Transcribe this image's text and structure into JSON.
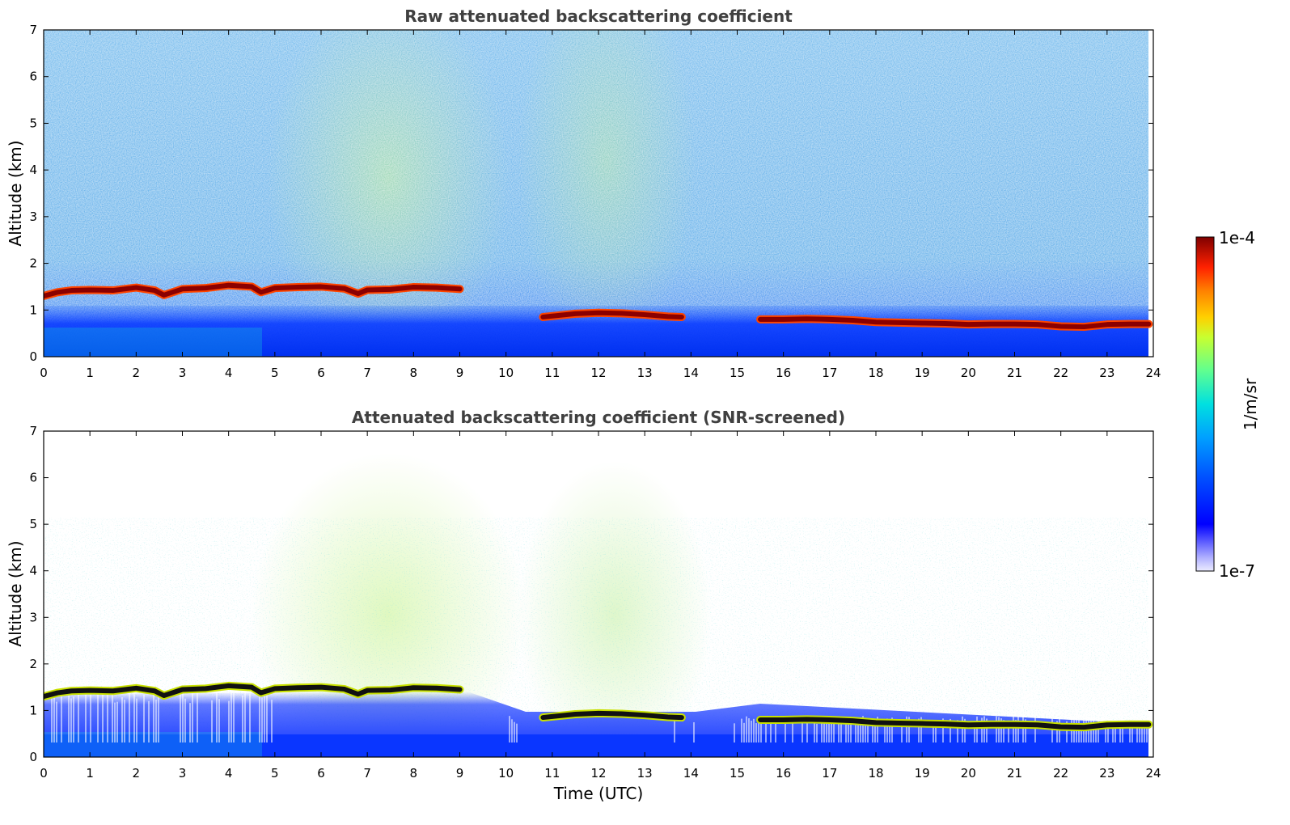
{
  "chart_data": [
    {
      "type": "heatmap",
      "title": "Raw attenuated backscattering coefficient",
      "xlabel": "",
      "ylabel": "Altitude (km)",
      "xlim": [
        0,
        24
      ],
      "ylim": [
        0,
        7
      ],
      "xticks": [
        0,
        1,
        2,
        3,
        4,
        5,
        6,
        7,
        8,
        9,
        10,
        11,
        12,
        13,
        14,
        15,
        16,
        17,
        18,
        19,
        20,
        21,
        22,
        23,
        24
      ],
      "yticks": [
        0,
        1,
        2,
        3,
        4,
        5,
        6,
        7
      ],
      "cloud_layers": [
        {
          "x": [
            0.0,
            0.3,
            0.6,
            1.0,
            1.5,
            2.0,
            2.4,
            2.6,
            3.0,
            3.5,
            4.0,
            4.5,
            4.7,
            5.0,
            5.5,
            6.0,
            6.5,
            6.8,
            7.0,
            7.5,
            8.0,
            8.5,
            9.0
          ],
          "y": [
            1.3,
            1.38,
            1.42,
            1.43,
            1.42,
            1.48,
            1.42,
            1.32,
            1.45,
            1.47,
            1.53,
            1.5,
            1.38,
            1.47,
            1.49,
            1.5,
            1.46,
            1.35,
            1.43,
            1.44,
            1.49,
            1.48,
            1.45
          ]
        },
        {
          "x": [
            10.8,
            11.0,
            11.5,
            12.0,
            12.5,
            13.0,
            13.5,
            13.8
          ],
          "y": [
            0.85,
            0.87,
            0.92,
            0.94,
            0.93,
            0.9,
            0.86,
            0.85
          ]
        },
        {
          "x": [
            15.5,
            16.0,
            16.5,
            17.0,
            17.5,
            18.0,
            18.5,
            19.0,
            19.5,
            20.0,
            20.5,
            21.0,
            21.5,
            22.0,
            22.5,
            23.0,
            23.5,
            23.9
          ],
          "y": [
            0.8,
            0.8,
            0.81,
            0.8,
            0.78,
            0.74,
            0.73,
            0.72,
            0.71,
            0.69,
            0.7,
            0.7,
            0.69,
            0.65,
            0.64,
            0.69,
            0.7,
            0.7
          ]
        }
      ]
    },
    {
      "type": "heatmap",
      "title": "Attenuated backscattering coefficient (SNR-screened)",
      "xlabel": "Time (UTC)",
      "ylabel": "Altitude (km)",
      "xlim": [
        0,
        24
      ],
      "ylim": [
        0,
        7
      ],
      "xticks": [
        0,
        1,
        2,
        3,
        4,
        5,
        6,
        7,
        8,
        9,
        10,
        11,
        12,
        13,
        14,
        15,
        16,
        17,
        18,
        19,
        20,
        21,
        22,
        23,
        24
      ],
      "yticks": [
        0,
        1,
        2,
        3,
        4,
        5,
        6,
        7
      ],
      "cloud_layers": [
        {
          "x": [
            0.0,
            0.3,
            0.6,
            1.0,
            1.5,
            2.0,
            2.4,
            2.6,
            3.0,
            3.5,
            4.0,
            4.5,
            4.7,
            5.0,
            5.5,
            6.0,
            6.5,
            6.8,
            7.0,
            7.5,
            8.0,
            8.5,
            9.0
          ],
          "y": [
            1.3,
            1.38,
            1.42,
            1.43,
            1.42,
            1.48,
            1.42,
            1.32,
            1.45,
            1.47,
            1.53,
            1.5,
            1.38,
            1.47,
            1.49,
            1.5,
            1.46,
            1.35,
            1.43,
            1.44,
            1.49,
            1.48,
            1.45
          ]
        },
        {
          "x": [
            10.8,
            11.0,
            11.5,
            12.0,
            12.5,
            13.0,
            13.5,
            13.8
          ],
          "y": [
            0.85,
            0.87,
            0.92,
            0.94,
            0.93,
            0.9,
            0.86,
            0.85
          ]
        },
        {
          "x": [
            15.5,
            16.0,
            16.5,
            17.0,
            17.5,
            18.0,
            18.5,
            19.0,
            19.5,
            20.0,
            20.5,
            21.0,
            21.5,
            22.0,
            22.5,
            23.0,
            23.5,
            23.9
          ],
          "y": [
            0.8,
            0.8,
            0.81,
            0.8,
            0.78,
            0.74,
            0.73,
            0.72,
            0.71,
            0.69,
            0.7,
            0.7,
            0.69,
            0.65,
            0.64,
            0.69,
            0.7,
            0.7
          ]
        }
      ]
    }
  ],
  "colorbar": {
    "max_label": "1e-4",
    "min_label": "1e-7",
    "unit_label": "1/m/sr",
    "colors": [
      "#7f0000",
      "#c00000",
      "#ff3000",
      "#ff8000",
      "#ffd000",
      "#c8ff30",
      "#60ff90",
      "#00e0e0",
      "#00a0ff",
      "#0050ff",
      "#0000ff",
      "#6060ff",
      "#b0b0ff",
      "#e8e8ff"
    ]
  },
  "colors": {
    "background_noise": "#4aa8e8",
    "surface_layer": "#0a3cff",
    "cloud_core": "#8b0000",
    "cloud_edge": "#ff4500",
    "screened_cloud_core": "#111111",
    "screened_cloud_edge": "#c8e000",
    "title": "#404040"
  }
}
